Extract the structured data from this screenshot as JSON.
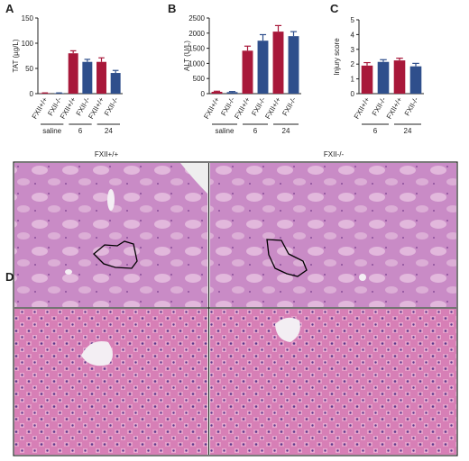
{
  "chart_data": [
    {
      "type": "bar",
      "letter": "A",
      "ylabel": "TAT (µg/L)",
      "categories": [
        "FXII+/+",
        "FXII-/-",
        "FXII+/+",
        "FXII-/-",
        "FXII+/+",
        "FXII-/-"
      ],
      "groups": [
        "saline",
        "6",
        "24"
      ],
      "colors": [
        "#a8183a",
        "#2f4f8c",
        "#a8183a",
        "#2f4f8c",
        "#a8183a",
        "#2f4f8c"
      ],
      "values": [
        1,
        1,
        80,
        63,
        63,
        41
      ],
      "errors": [
        0.5,
        0.5,
        5,
        5,
        8,
        5
      ],
      "ylim": [
        0,
        150
      ],
      "yticks": [
        0,
        50,
        100,
        150
      ]
    },
    {
      "type": "bar",
      "letter": "B",
      "ylabel": "ALT (U/L)",
      "categories": [
        "FXII+/+",
        "FXII-/-",
        "FXII+/+",
        "FXII-/-",
        "FXII+/+",
        "FXII-/-"
      ],
      "groups": [
        "saline",
        "6",
        "24"
      ],
      "colors": [
        "#a8183a",
        "#2f4f8c",
        "#a8183a",
        "#2f4f8c",
        "#a8183a",
        "#2f4f8c"
      ],
      "values": [
        60,
        50,
        1420,
        1750,
        2050,
        1900
      ],
      "errors": [
        20,
        20,
        150,
        200,
        200,
        150
      ],
      "ylim": [
        0,
        2500
      ],
      "yticks": [
        0,
        500,
        1000,
        1500,
        2000,
        2500
      ]
    },
    {
      "type": "bar",
      "letter": "C",
      "ylabel": "Injury score",
      "categories": [
        "FXII+/+",
        "FXII-/-",
        "FXII+/+",
        "FXII-/-"
      ],
      "groups": [
        "6",
        "24"
      ],
      "colors": [
        "#a8183a",
        "#2f4f8c",
        "#a8183a",
        "#2f4f8c"
      ],
      "values": [
        1.9,
        2.15,
        2.25,
        1.85
      ],
      "errors": [
        0.2,
        0.15,
        0.15,
        0.2
      ],
      "ylim": [
        0,
        5
      ],
      "yticks": [
        0,
        1,
        2,
        3,
        4,
        5
      ]
    }
  ],
  "panel_d": {
    "letter": "D",
    "titles": [
      "FXII+/+",
      "FXII-/-"
    ]
  }
}
